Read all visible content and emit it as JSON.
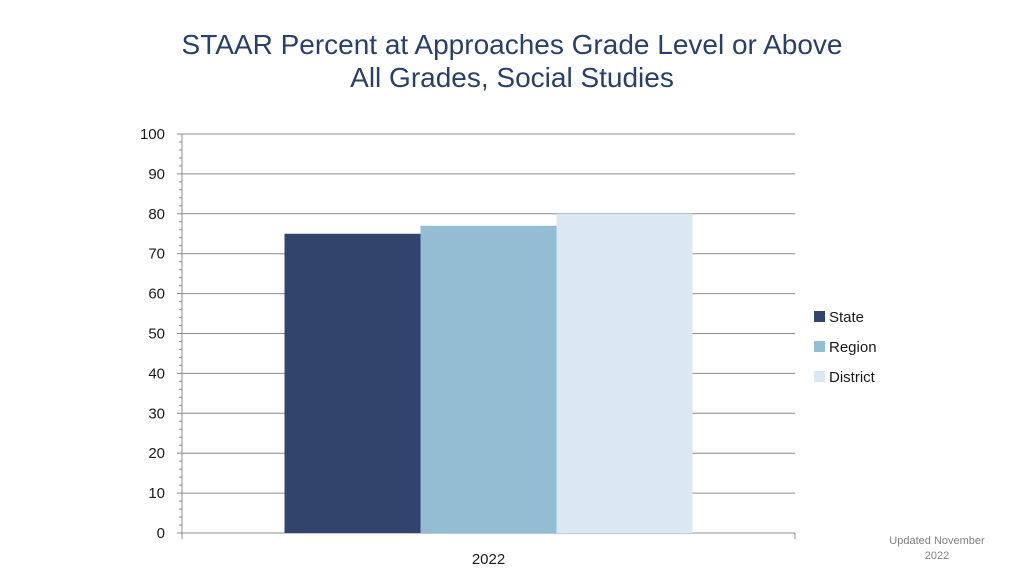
{
  "title_line1": "STAAR Percent at Approaches Grade Level or Above",
  "title_line2": "All Grades, Social Studies",
  "footer": "Updated November 2022",
  "chart_data": {
    "type": "bar",
    "title": "STAAR Percent at Approaches Grade Level or Above All Grades, Social Studies",
    "categories": [
      "2022"
    ],
    "series": [
      {
        "name": "State",
        "values": [
          75
        ],
        "color": "#31446b"
      },
      {
        "name": "Region",
        "values": [
          77
        ],
        "color": "#93bdd2"
      },
      {
        "name": "District",
        "values": [
          80
        ],
        "color": "#dae8f4"
      }
    ],
    "ylim": [
      0,
      100
    ],
    "yticks": [
      0,
      10,
      20,
      30,
      40,
      50,
      60,
      70,
      80,
      90,
      100
    ],
    "grid": true,
    "legend": "right"
  }
}
